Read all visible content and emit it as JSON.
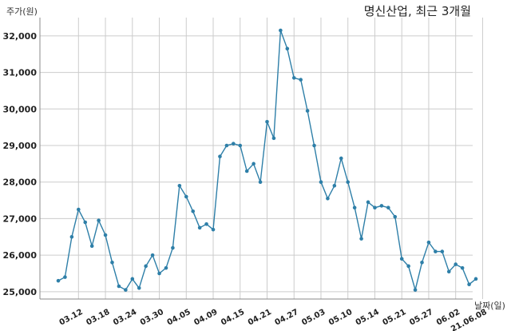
{
  "chart_data": {
    "type": "line",
    "title": "명신산업, 최근 3개월",
    "ylabel": "주가(원)",
    "xlabel": "날짜(일)",
    "ylim": [
      24800,
      32500
    ],
    "yticks": [
      25000,
      26000,
      27000,
      28000,
      29000,
      30000,
      31000,
      32000
    ],
    "ytick_labels": [
      "25,000",
      "26,000",
      "27,000",
      "28,000",
      "29,000",
      "30,000",
      "31,000",
      "32,000"
    ],
    "xtick_labels": [
      "03.12",
      "03.18",
      "03.24",
      "03.30",
      "04.05",
      "04.09",
      "04.15",
      "04.21",
      "04.27",
      "05.03",
      "05.10",
      "05.14",
      "05.21",
      "05.27",
      "06.02",
      "21.06.08"
    ],
    "xtick_positions": [
      3,
      7,
      11,
      15,
      19,
      23,
      27,
      31,
      35,
      39,
      43,
      47,
      51,
      55,
      59,
      63
    ],
    "grid": true,
    "line_color": "#2e7fa8",
    "series": [
      {
        "values": [
          25300,
          25400,
          26500,
          27250,
          26900,
          26250,
          26950,
          26550,
          25800,
          25150,
          25050,
          25350,
          25100,
          25700,
          26000,
          25500,
          25650,
          26200,
          27900,
          27600,
          27200,
          26750,
          26850,
          26700,
          28700,
          29000,
          29050,
          29000,
          28300,
          28500,
          28000,
          29650,
          29200,
          32150,
          31650,
          30850,
          30800,
          29950,
          29000,
          28000,
          27550,
          27900,
          28650,
          28000,
          27300,
          26450,
          27450,
          27300,
          27350,
          27300,
          27050,
          25900,
          25700,
          25050,
          25800,
          26350,
          26100,
          26100,
          25550,
          25750,
          25650,
          25200,
          25350
        ]
      }
    ]
  }
}
